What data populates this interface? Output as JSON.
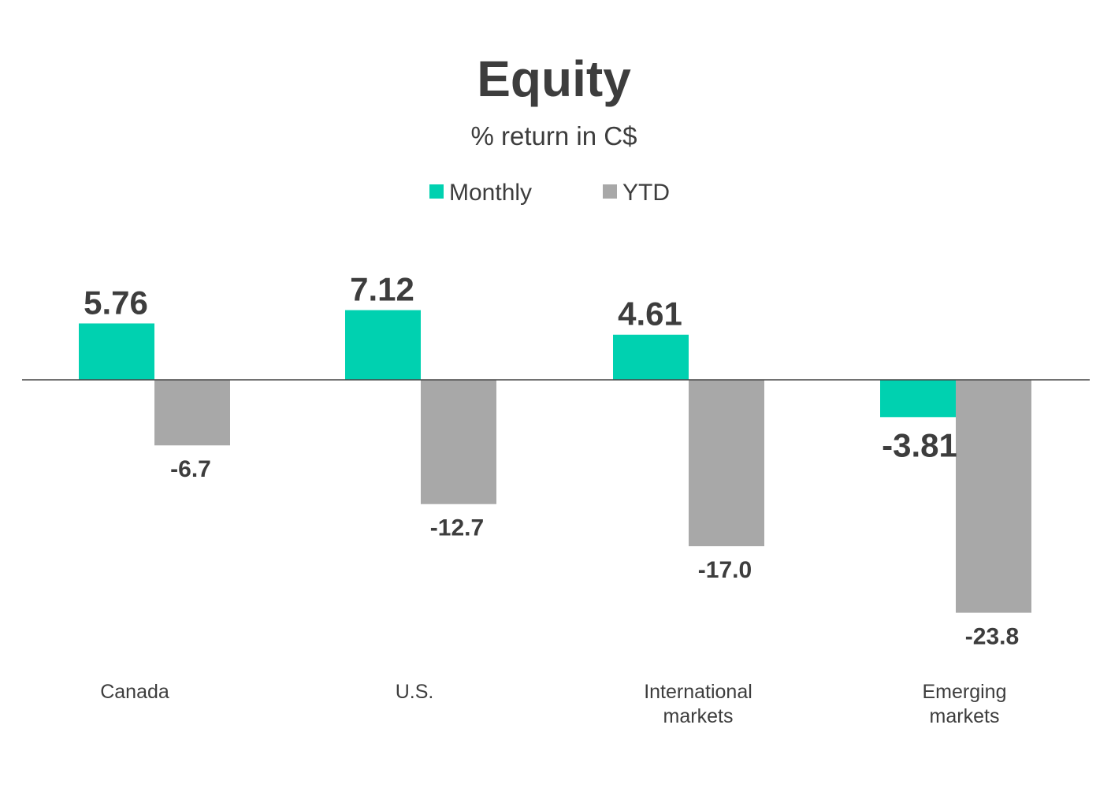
{
  "colors": {
    "monthly": "#00d1b0",
    "ytd": "#a8a8a8",
    "text": "#3d3d3d",
    "axis": "#444444"
  },
  "chart_data": {
    "type": "bar",
    "title": "Equity",
    "subtitle": "% return in C$",
    "xlabel": "",
    "ylabel": "",
    "ylim": [
      -27,
      13
    ],
    "legend_position": "top-center",
    "categories": [
      "Canada",
      "U.S.",
      "International markets",
      "Emerging markets"
    ],
    "category_lines": [
      [
        "Canada"
      ],
      [
        "U.S."
      ],
      [
        "International",
        "markets"
      ],
      [
        "Emerging",
        "markets"
      ]
    ],
    "series": [
      {
        "name": "Monthly",
        "values": [
          5.76,
          7.12,
          4.61,
          -3.81
        ],
        "labels": [
          "5.76",
          "7.12",
          "4.61",
          "-3.81"
        ]
      },
      {
        "name": "YTD",
        "values": [
          -6.7,
          -12.7,
          -17.0,
          -23.8
        ],
        "labels": [
          "-6.7",
          "-12.7",
          "-17.0",
          "-23.8"
        ]
      }
    ]
  }
}
